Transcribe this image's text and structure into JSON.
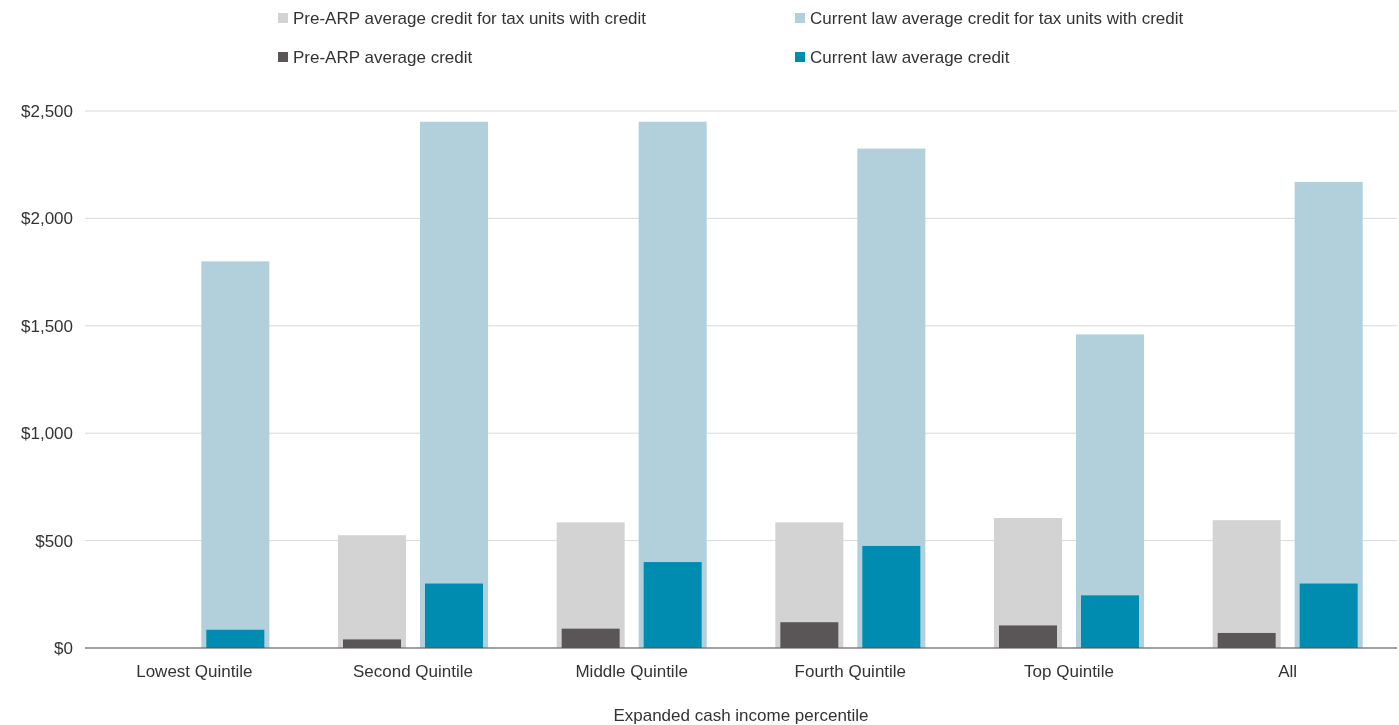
{
  "chart_data": {
    "type": "bar",
    "xlabel": "Expanded cash income percentile",
    "categories": [
      "Lowest Quintile",
      "Second Quintile",
      "Middle Quintile",
      "Fourth Quintile",
      "Top Quintile",
      "All"
    ],
    "series": [
      {
        "name": "Pre-ARP average credit for tax units with credit",
        "color": "#d3d3d3",
        "values": [
          null,
          525,
          585,
          585,
          605,
          595
        ]
      },
      {
        "name": "Current law average credit for tax units with credit",
        "color": "#b1d0db",
        "values": [
          1800,
          2450,
          2450,
          2325,
          1460,
          2170
        ]
      },
      {
        "name": "Pre-ARP average credit",
        "color": "#5a5657",
        "values": [
          null,
          40,
          90,
          120,
          105,
          70
        ]
      },
      {
        "name": "Current law average credit",
        "color": "#008bb0",
        "values": [
          85,
          300,
          400,
          475,
          245,
          300
        ]
      }
    ],
    "ylim": [
      0,
      2500
    ],
    "yticks": [
      {
        "value": 0,
        "label": "$0"
      },
      {
        "value": 500,
        "label": "$500"
      },
      {
        "value": 1000,
        "label": "$1,000"
      },
      {
        "value": 1500,
        "label": "$1,500"
      },
      {
        "value": 2000,
        "label": "$2,000"
      },
      {
        "value": 2500,
        "label": "$2,500"
      }
    ],
    "grid": "y",
    "legend": "top"
  }
}
